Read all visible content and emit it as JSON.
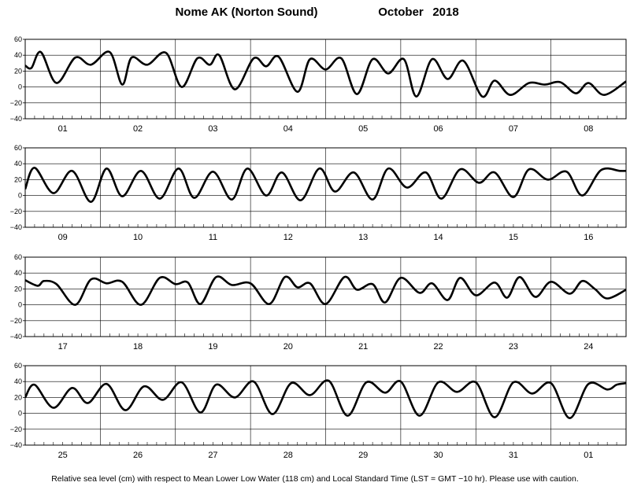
{
  "title": {
    "station": "Nome AK (Norton Sound)",
    "month": "October",
    "year": "2018"
  },
  "footnote": "Relative sea level (cm) with respect to Mean Lower Low Water (118 cm) and Local Standard Time (LST = GMT −10 hr). Please use with caution.",
  "chart_data": [
    {
      "type": "line",
      "panel": 1,
      "ylim": [
        -40,
        60
      ],
      "yticks": [
        "60",
        "40",
        "20",
        "0",
        "−20",
        "−40"
      ],
      "grid": true,
      "days": [
        "01",
        "02",
        "03",
        "04",
        "05",
        "06",
        "07",
        "08"
      ],
      "series": [
        {
          "x_hours": [
            0,
            2,
            5,
            10,
            16,
            21,
            27,
            31,
            34,
            39,
            45,
            50,
            55,
            59,
            62,
            67,
            73,
            77,
            81,
            87,
            91,
            96,
            101,
            106,
            111,
            116,
            121,
            125,
            130,
            135,
            140,
            146,
            150,
            155,
            161,
            166,
            171,
            176,
            180,
            185,
            192
          ],
          "y_cm": [
            27,
            24,
            44,
            5,
            37,
            28,
            44,
            3,
            37,
            28,
            43,
            0,
            36,
            28,
            40,
            -3,
            36,
            26,
            38,
            -6,
            35,
            22,
            36,
            -9,
            35,
            17,
            35,
            -12,
            35,
            10,
            33,
            -12,
            8,
            -10,
            5,
            3,
            6,
            -8,
            5,
            -10,
            7
          ]
        }
      ]
    },
    {
      "type": "line",
      "panel": 2,
      "ylim": [
        -40,
        60
      ],
      "yticks": [
        "60",
        "40",
        "20",
        "0",
        "−20",
        "−40"
      ],
      "grid": true,
      "days": [
        "09",
        "10",
        "11",
        "12",
        "13",
        "14",
        "15",
        "16"
      ],
      "series": [
        {
          "x_hours": [
            0,
            3,
            9,
            15,
            21,
            26,
            31,
            37,
            43,
            49,
            54,
            60,
            66,
            71,
            77,
            82,
            88,
            94,
            99,
            105,
            111,
            116,
            122,
            128,
            133,
            139,
            145,
            150,
            156,
            161,
            167,
            173,
            178,
            184,
            190,
            192
          ],
          "y_cm": [
            8,
            35,
            3,
            31,
            -8,
            34,
            -1,
            31,
            -4,
            34,
            -3,
            30,
            -5,
            34,
            0,
            29,
            -6,
            34,
            5,
            29,
            -5,
            34,
            10,
            29,
            -4,
            33,
            16,
            29,
            -2,
            33,
            20,
            30,
            0,
            32,
            31,
            31
          ]
        }
      ]
    },
    {
      "type": "line",
      "panel": 3,
      "ylim": [
        -40,
        60
      ],
      "yticks": [
        "60",
        "40",
        "20",
        "0",
        "−20",
        "−40"
      ],
      "grid": true,
      "days": [
        "17",
        "18",
        "19",
        "20",
        "21",
        "22",
        "23",
        "24"
      ],
      "series": [
        {
          "x_hours": [
            0,
            4,
            6,
            10,
            16,
            21,
            26,
            31,
            37,
            43,
            48,
            52,
            56,
            61,
            66,
            72,
            78,
            83,
            87,
            91,
            96,
            102,
            106,
            111,
            115,
            120,
            126,
            130,
            135,
            139,
            144,
            150,
            154,
            158,
            163,
            168,
            174,
            178,
            182,
            186,
            192
          ],
          "y_cm": [
            31,
            24,
            30,
            26,
            0,
            32,
            27,
            29,
            0,
            34,
            26,
            28,
            1,
            35,
            25,
            27,
            1,
            35,
            22,
            27,
            1,
            35,
            19,
            26,
            3,
            34,
            15,
            27,
            6,
            34,
            12,
            28,
            9,
            35,
            10,
            29,
            14,
            30,
            20,
            8,
            19
          ]
        }
      ]
    },
    {
      "type": "line",
      "panel": 4,
      "ylim": [
        -40,
        60
      ],
      "yticks": [
        "60",
        "40",
        "20",
        "0",
        "−20",
        "−40"
      ],
      "grid": true,
      "days": [
        "25",
        "26",
        "27",
        "28",
        "29",
        "30",
        "31",
        "01"
      ],
      "series": [
        {
          "x_hours": [
            0,
            3,
            9,
            15,
            20,
            26,
            32,
            38,
            44,
            50,
            56,
            61,
            67,
            73,
            79,
            85,
            91,
            97,
            103,
            109,
            115,
            120,
            126,
            132,
            138,
            144,
            150,
            156,
            162,
            168,
            174,
            180,
            186,
            189,
            192
          ],
          "y_cm": [
            20,
            36,
            7,
            32,
            13,
            37,
            4,
            34,
            17,
            39,
            1,
            36,
            20,
            40,
            -1,
            38,
            23,
            41,
            -3,
            39,
            26,
            40,
            -3,
            39,
            27,
            39,
            -5,
            39,
            25,
            38,
            -6,
            37,
            30,
            36,
            38
          ]
        }
      ]
    }
  ]
}
